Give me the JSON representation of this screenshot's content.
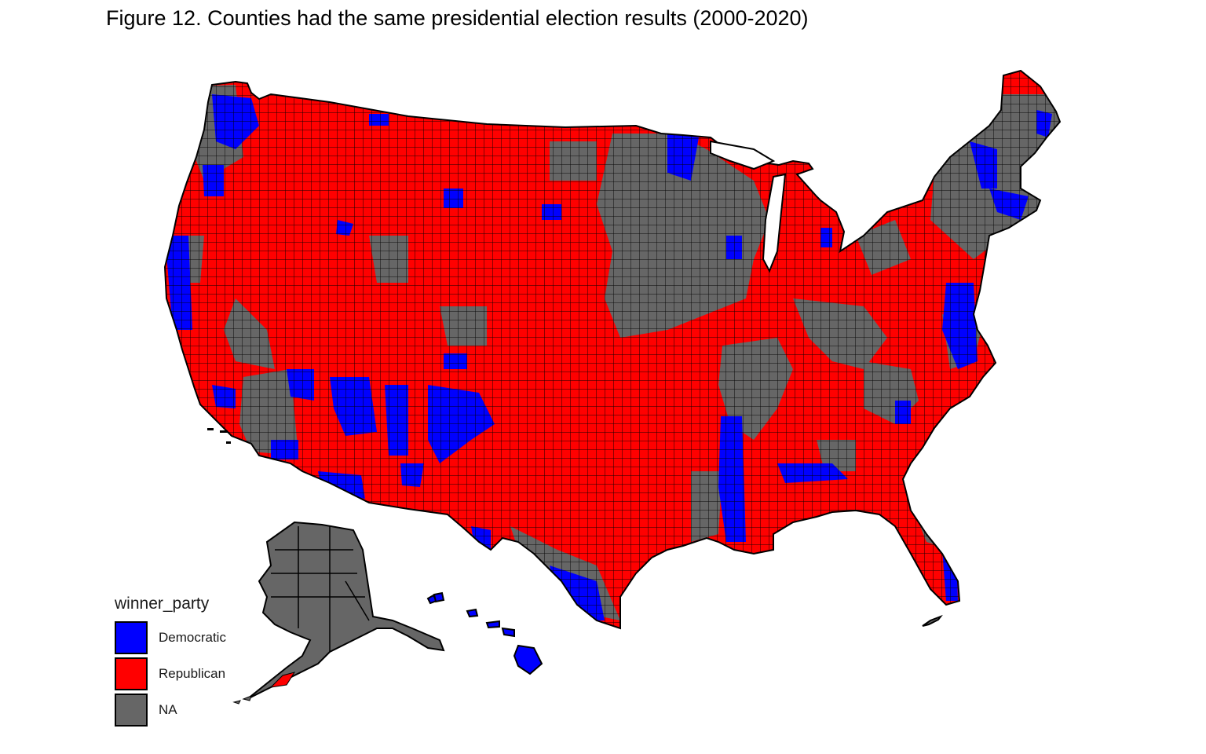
{
  "title": "Figure 12. Counties had the same presidential election results (2000-2020)",
  "legend": {
    "title": "winner_party",
    "items": [
      {
        "label": "Democratic",
        "color": "#0000ff"
      },
      {
        "label": "Republican",
        "color": "#ff0000"
      },
      {
        "label": "NA",
        "color": "#666666"
      }
    ]
  },
  "colors": {
    "democratic": "#0000ff",
    "republican": "#ff0000",
    "na": "#666666",
    "border": "#000000"
  }
}
